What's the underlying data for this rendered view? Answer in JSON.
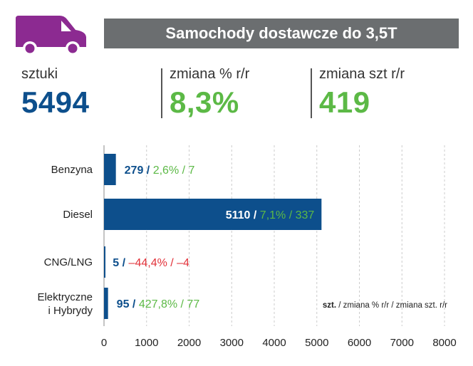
{
  "header": {
    "title": "Samochody dostawcze do 3,5T",
    "icon": "van-icon"
  },
  "stats": [
    {
      "label": "sztuki",
      "value": "5494",
      "color": "#0d4f8c"
    },
    {
      "label": "zmiana % r/r",
      "value": "8,3%",
      "color": "#5cb946"
    },
    {
      "label": "zmiana szt r/r",
      "value": "419",
      "color": "#5cb946"
    }
  ],
  "colors": {
    "blue": "#0d4f8c",
    "green": "#5cb946",
    "red": "#e2323a",
    "gray": "#6b6e70",
    "purple": "#8c2a91"
  },
  "chart_data": {
    "type": "bar",
    "orientation": "horizontal",
    "title": "Samochody dostawcze do 3,5T",
    "categories": [
      "Benzyna",
      "Diesel",
      "CNG/LNG",
      "Elektryczne i Hybrydy"
    ],
    "category_lines": [
      [
        "Benzyna"
      ],
      [
        "Diesel"
      ],
      [
        "CNG/LNG"
      ],
      [
        "Elektryczne",
        "i Hybrydy"
      ]
    ],
    "values": [
      279,
      5110,
      5,
      95
    ],
    "change_pct": [
      "2,6%",
      "7,1%",
      "–44,4%",
      "427,8%"
    ],
    "change_units": [
      "7",
      "337",
      "–4",
      "77"
    ],
    "change_negative": [
      false,
      false,
      true,
      false
    ],
    "xlim": [
      0,
      8000
    ],
    "xticks": [
      0,
      1000,
      2000,
      3000,
      4000,
      5000,
      6000,
      7000,
      8000
    ],
    "grid": true,
    "legend_note": {
      "bold": "szt.",
      "rest": " / zmiana % r/r / zmiana szt. r/r"
    }
  }
}
